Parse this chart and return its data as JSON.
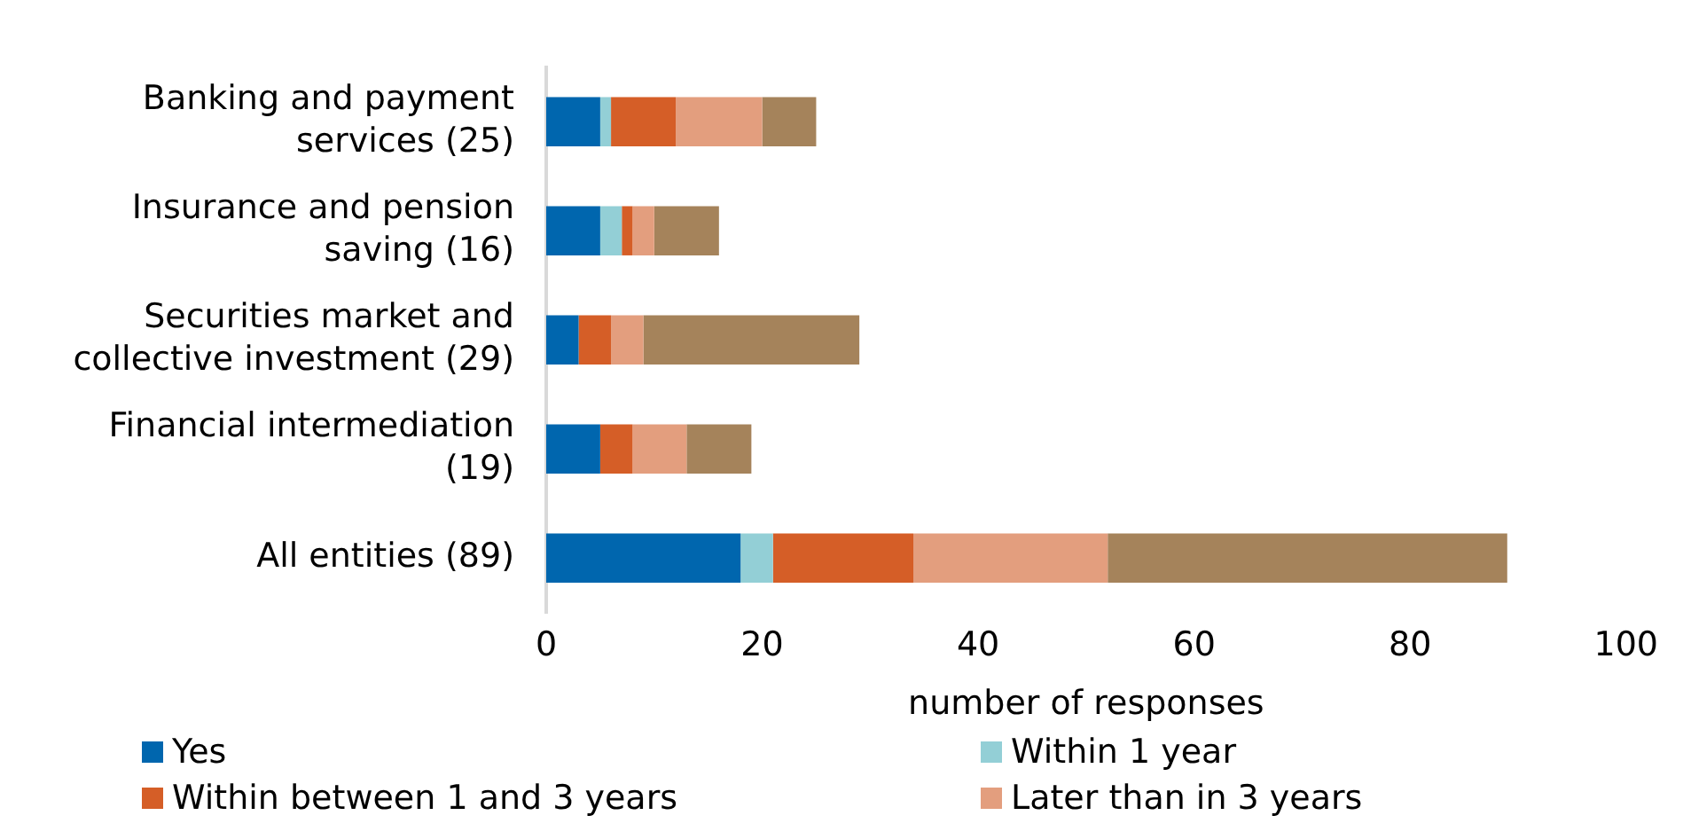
{
  "chart_data": {
    "type": "bar",
    "orientation": "horizontal",
    "stacked": true,
    "xlabel": "number of responses",
    "categories": [
      "Banking and payment services (25)",
      "Insurance and pension saving (16)",
      "Securities market and collective investment (29)",
      "Financial intermediation (19)",
      "All entities (89)"
    ],
    "series": [
      {
        "name": "Yes",
        "color": "#0066ae",
        "values": [
          5,
          5,
          3,
          5,
          18
        ]
      },
      {
        "name": "Within 1 year",
        "color": "#93cfd6",
        "values": [
          1,
          2,
          0,
          0,
          3
        ]
      },
      {
        "name": "Within between 1 and 3 years",
        "color": "#d55e27",
        "values": [
          6,
          1,
          3,
          3,
          13
        ]
      },
      {
        "name": "Later than in 3 years",
        "color": "#e39e7e",
        "values": [
          8,
          2,
          3,
          5,
          18
        ]
      },
      {
        "color": "#a5835b",
        "values": [
          5,
          6,
          20,
          6,
          37
        ]
      }
    ],
    "xlim": [
      0,
      100
    ],
    "xticks": [
      0,
      20,
      40,
      60,
      80,
      100
    ],
    "grid": false,
    "legend": "bottom"
  }
}
